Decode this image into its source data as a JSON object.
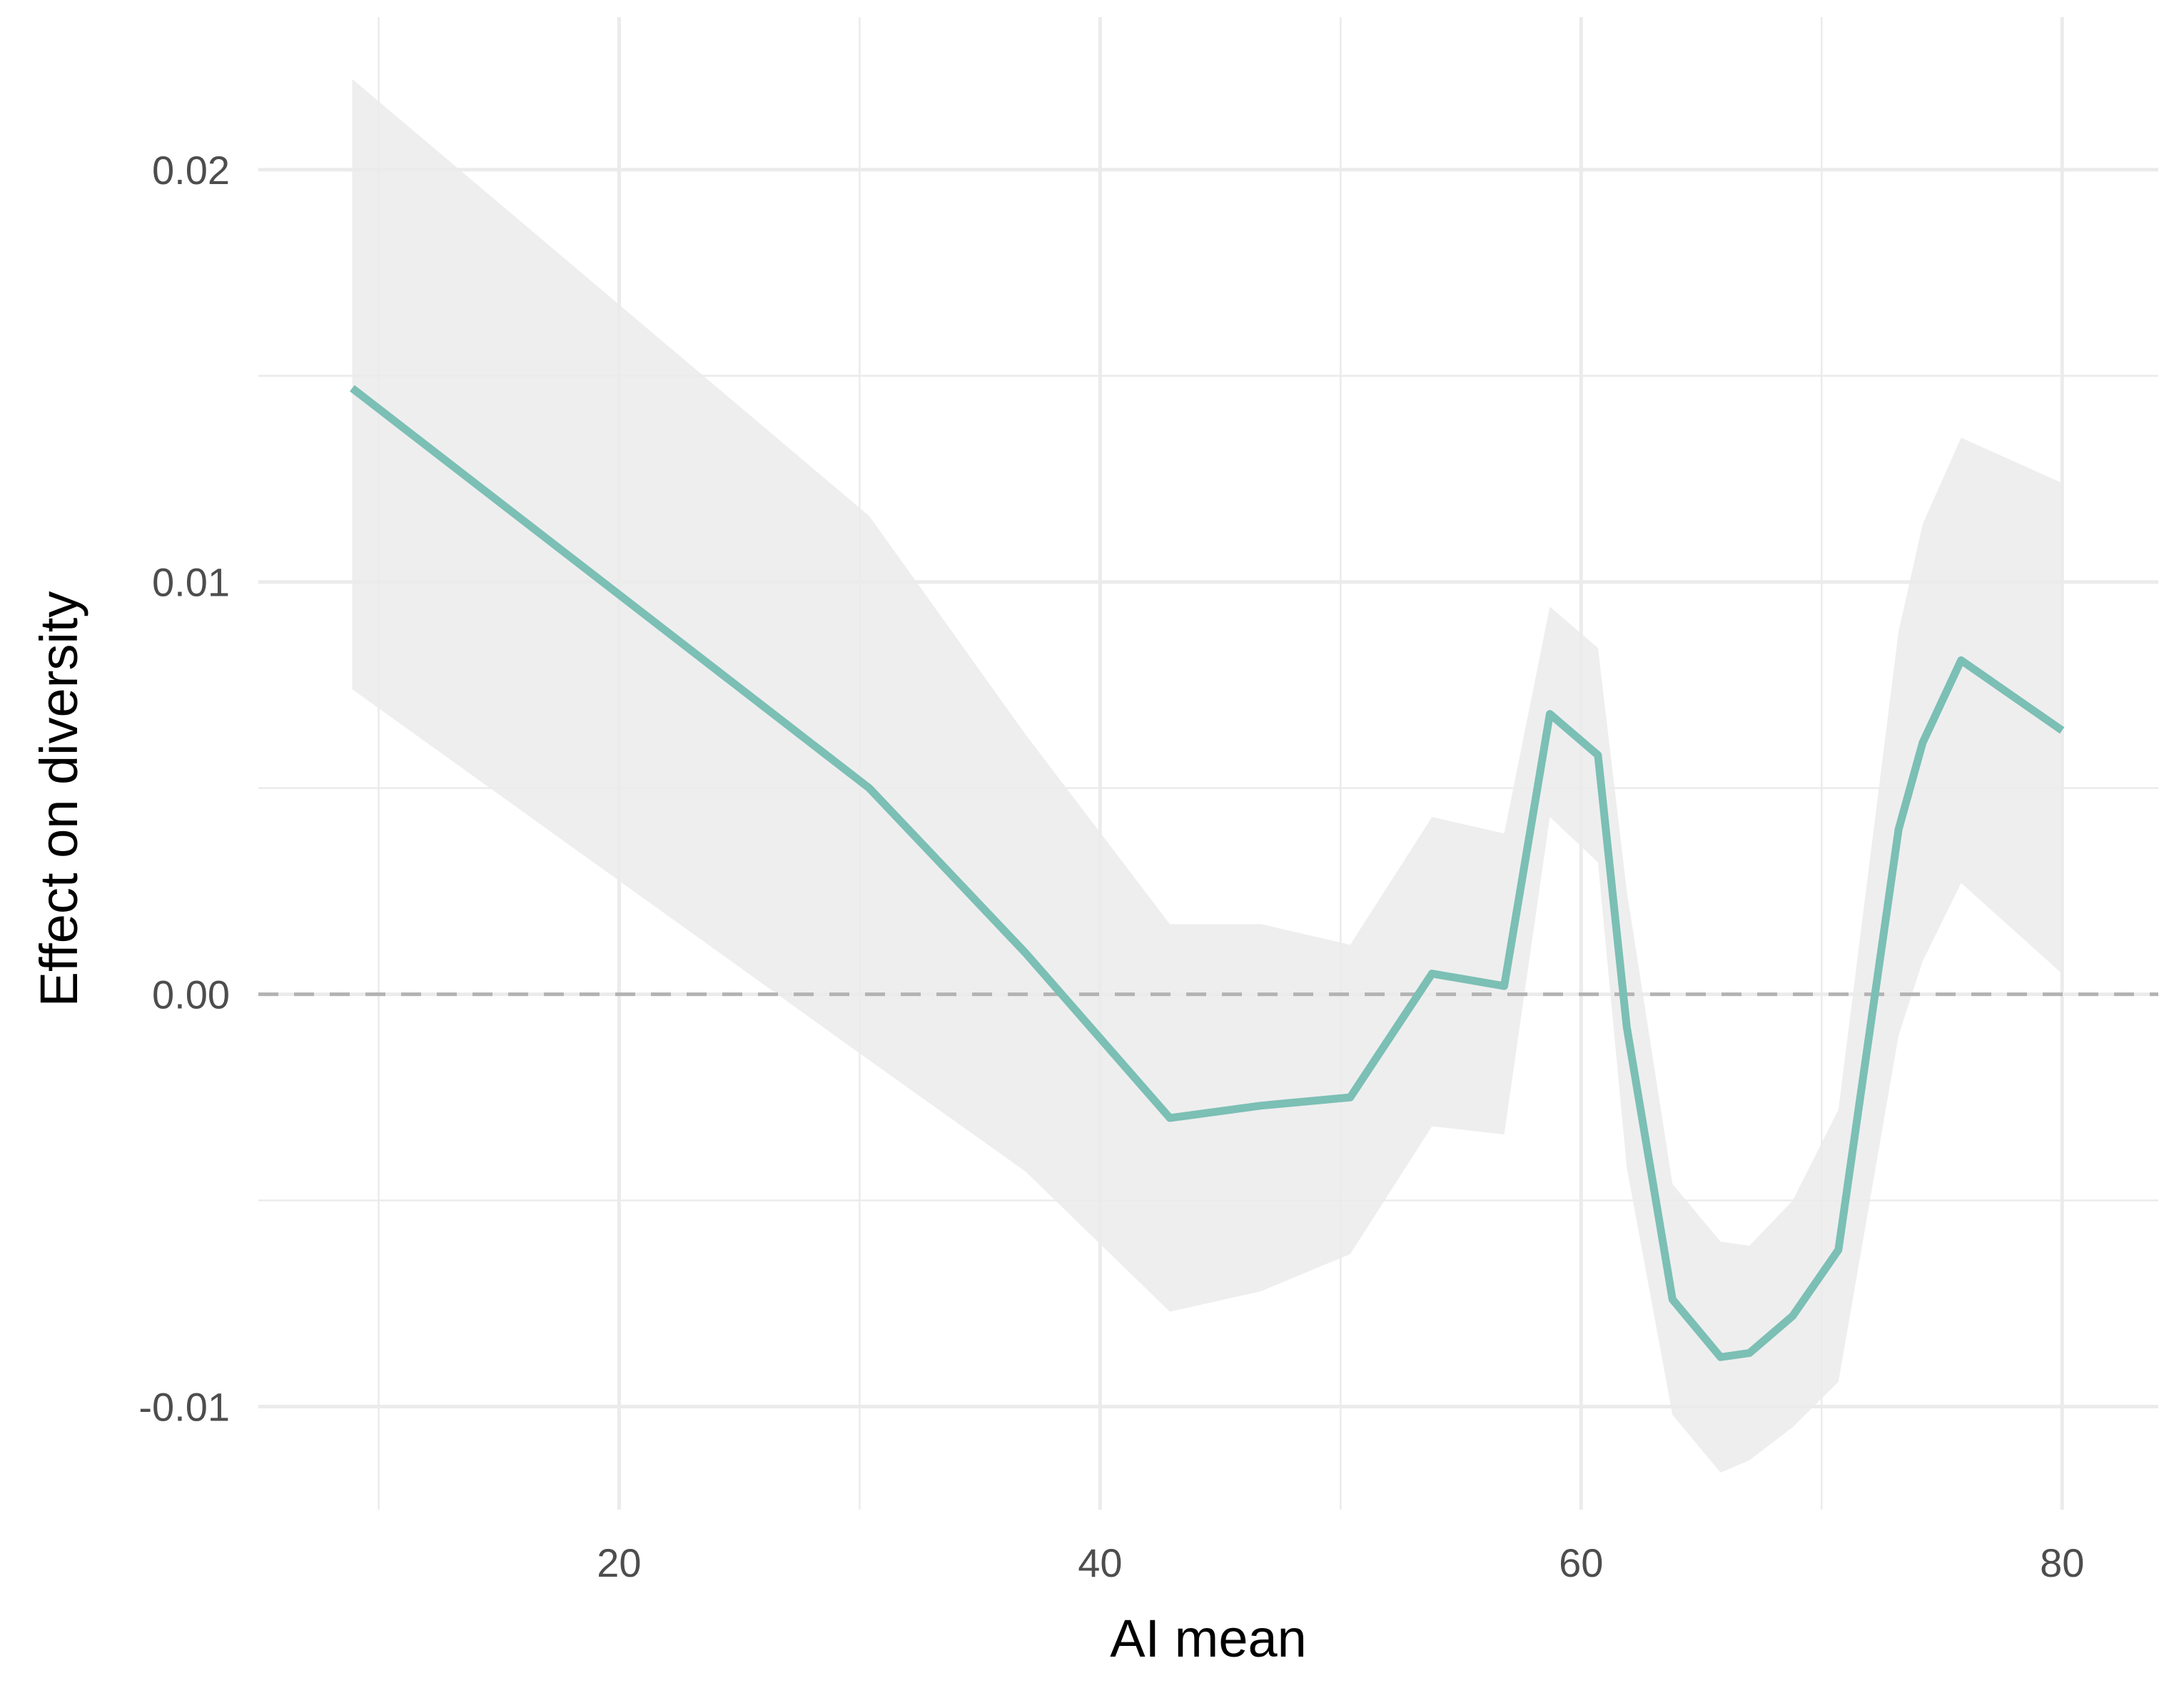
{
  "chart_data": {
    "type": "line",
    "title": "",
    "xlabel": "AI mean",
    "ylabel": "Effect on diversity",
    "xlim": [
      5,
      84
    ],
    "ylim": [
      -0.0125,
      0.0237
    ],
    "x_ticks": [
      20,
      40,
      60,
      80
    ],
    "x_tick_labels": [
      "20",
      "40",
      "60",
      "80"
    ],
    "x_minor_ticks": [
      10,
      30,
      50,
      70
    ],
    "y_ticks": [
      -0.01,
      0.0,
      0.01,
      0.02
    ],
    "y_tick_labels": [
      "-0.01",
      "0.00",
      "0.01",
      "0.02"
    ],
    "y_minor_ticks": [
      -0.005,
      0.005,
      0.015
    ],
    "grid": true,
    "reference_line": {
      "y": 0,
      "style": "dashed",
      "color": "#b3b3b3"
    },
    "colors": {
      "line": "#7bbfb5",
      "ribbon": "#ebebeb",
      "grid": "#ebebeb",
      "reference": "#b3b3b3"
    },
    "series": [
      {
        "x": [
          8.9,
          30.4,
          36.9,
          42.9,
          46.7,
          50.4,
          53.8,
          56.8,
          58.7,
          60.7,
          61.9,
          63.8,
          65.8,
          67.0,
          68.8,
          70.7,
          73.2,
          74.2,
          75.8,
          80.0
        ],
        "y": [
          0.0147,
          0.005,
          0.001,
          -0.003,
          -0.0027,
          -0.0025,
          0.0005,
          0.0002,
          0.0068,
          0.0058,
          -0.0008,
          -0.0074,
          -0.0088,
          -0.0087,
          -0.0078,
          -0.0062,
          0.004,
          0.0061,
          0.0081,
          0.0064
        ],
        "lower": [
          0.0074,
          -0.0016,
          -0.0043,
          -0.0077,
          -0.0072,
          -0.0063,
          -0.0032,
          -0.0034,
          0.0043,
          0.0032,
          -0.0042,
          -0.0102,
          -0.0116,
          -0.0113,
          -0.0105,
          -0.0094,
          -0.001,
          0.0008,
          0.0027,
          0.0005
        ],
        "upper": [
          0.0222,
          0.0116,
          0.0063,
          0.0017,
          0.0017,
          0.0012,
          0.0043,
          0.0039,
          0.0094,
          0.0084,
          0.0025,
          -0.0046,
          -0.006,
          -0.0061,
          -0.005,
          -0.0028,
          0.0088,
          0.0114,
          0.0135,
          0.0124
        ]
      }
    ]
  }
}
